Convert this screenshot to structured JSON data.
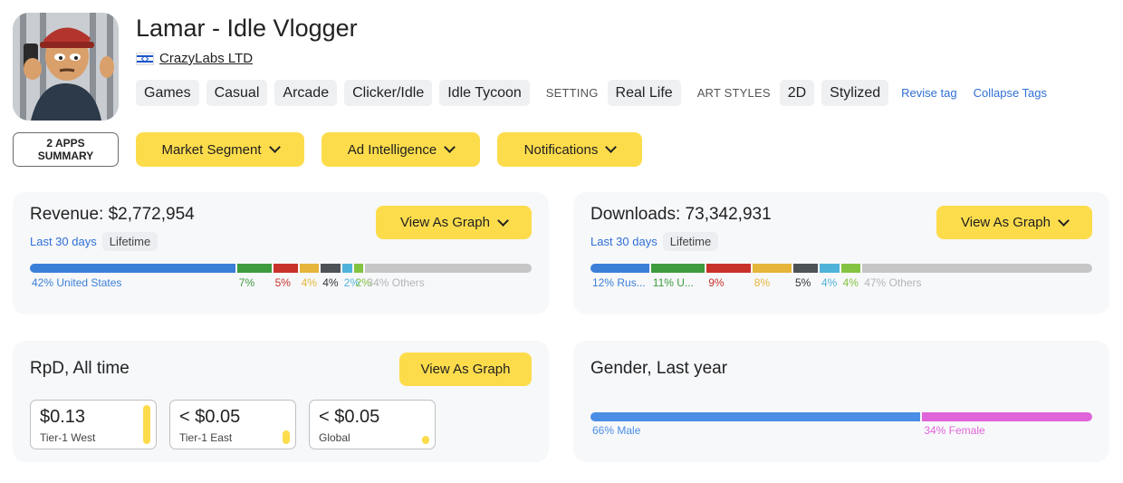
{
  "app": {
    "title": "Lamar - Idle Vlogger",
    "publisher": "CrazyLabs LTD",
    "publisher_flag_icon": "israel-flag-icon"
  },
  "tags": {
    "genres": [
      "Games",
      "Casual",
      "Arcade",
      "Clicker/Idle",
      "Idle Tycoon"
    ],
    "setting_caption": "SETTING",
    "setting": [
      "Real Life"
    ],
    "art_styles_caption": "ART STYLES",
    "art_styles": [
      "2D",
      "Stylized"
    ],
    "revise_link": "Revise tag",
    "collapse_link": "Collapse Tags"
  },
  "actions": {
    "summary_line1": "2 APPS",
    "summary_line2": "SUMMARY",
    "market_segment": "Market Segment",
    "ad_intelligence": "Ad Intelligence",
    "notifications": "Notifications"
  },
  "revenue": {
    "title": "Revenue: $2,772,954",
    "graph_button": "View As Graph",
    "period_active": "Last 30 days",
    "period_other": "Lifetime",
    "segments": [
      {
        "label": "42% United States",
        "share": 42,
        "color": "#3b7fd8"
      },
      {
        "label": "7%",
        "share": 7,
        "color": "#3e9b3e"
      },
      {
        "label": "5%",
        "share": 5,
        "color": "#c8322b"
      },
      {
        "label": "4%",
        "share": 4,
        "color": "#e5b53c"
      },
      {
        "label": "4%",
        "share": 4,
        "color": "#4d5257"
      },
      {
        "label": "2%",
        "share": 2,
        "color": "#4fb3d9"
      },
      {
        "label": "2%",
        "share": 2,
        "color": "#83c341"
      },
      {
        "label": "34% Others",
        "share": 34,
        "color": "#c6c6c6"
      }
    ]
  },
  "downloads": {
    "title": "Downloads: 73,342,931",
    "graph_button": "View As Graph",
    "period_active": "Last 30 days",
    "period_other": "Lifetime",
    "segments": [
      {
        "label": "12% Rus...",
        "share": 12,
        "color": "#3b7fd8"
      },
      {
        "label": "11% U...",
        "share": 11,
        "color": "#3e9b3e"
      },
      {
        "label": "9%",
        "share": 9,
        "color": "#c8322b"
      },
      {
        "label": "8%",
        "share": 8,
        "color": "#e5b53c"
      },
      {
        "label": "5%",
        "share": 5,
        "color": "#4d5257"
      },
      {
        "label": "4%",
        "share": 4,
        "color": "#4fb3d9"
      },
      {
        "label": "4%",
        "share": 4,
        "color": "#83c341"
      },
      {
        "label": "47% Others",
        "share": 47,
        "color": "#c6c6c6"
      }
    ]
  },
  "rpd": {
    "title": "RpD, All time",
    "graph_button": "View As Graph",
    "boxes": [
      {
        "value": "$0.13",
        "label": "Tier-1 West",
        "level": 1.0
      },
      {
        "value": "< $0.05",
        "label": "Tier-1 East",
        "level": 0.35
      },
      {
        "value": "< $0.05",
        "label": "Global",
        "level": 0.2
      }
    ]
  },
  "gender": {
    "title": "Gender, Last year",
    "segments": [
      {
        "label": "66% Male",
        "share": 66,
        "color": "#4a8ee6"
      },
      {
        "label": "34% Female",
        "share": 34,
        "color": "#e065d9"
      }
    ]
  },
  "colors": {
    "accent_yellow": "#fddc4c",
    "link_blue": "#2f6fd6",
    "card_bg": "#f7f8fa"
  }
}
